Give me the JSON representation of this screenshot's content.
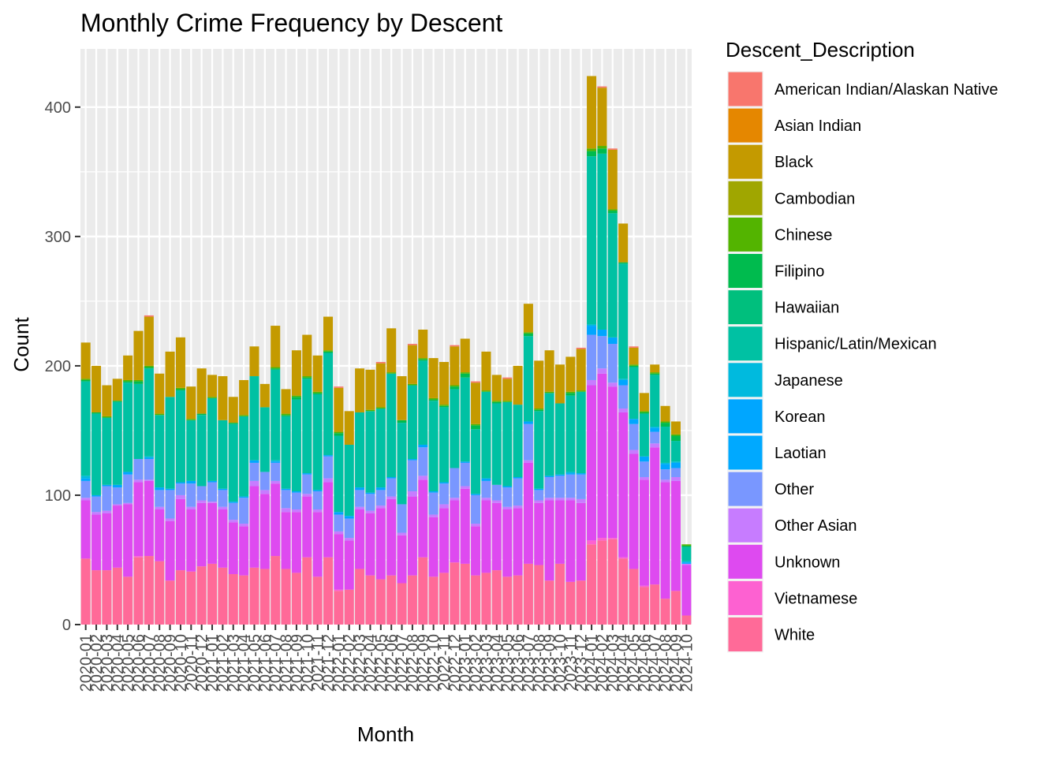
{
  "chart_data": {
    "type": "bar",
    "stacked": true,
    "title": "Monthly Crime Frequency by Descent",
    "xlabel": "Month",
    "ylabel": "Count",
    "ylim": [
      0,
      445
    ],
    "y_ticks": [
      0,
      100,
      200,
      300,
      400
    ],
    "grid": true,
    "legend_title": "Descent_Description",
    "legend_position": "right",
    "categories": [
      "2020-01",
      "2020-02",
      "2020-03",
      "2020-04",
      "2020-05",
      "2020-06",
      "2020-07",
      "2020-08",
      "2020-09",
      "2020-10",
      "2020-11",
      "2020-12",
      "2021-01",
      "2021-02",
      "2021-03",
      "2021-04",
      "2021-05",
      "2021-06",
      "2021-07",
      "2021-08",
      "2021-09",
      "2021-10",
      "2021-11",
      "2021-12",
      "2022-01",
      "2022-02",
      "2022-03",
      "2022-04",
      "2022-05",
      "2022-06",
      "2022-07",
      "2022-08",
      "2022-09",
      "2022-10",
      "2022-11",
      "2022-12",
      "2023-01",
      "2023-02",
      "2023-03",
      "2023-04",
      "2023-05",
      "2023-06",
      "2023-07",
      "2023-08",
      "2023-09",
      "2023-10",
      "2023-11",
      "2023-12",
      "2024-01",
      "2024-02",
      "2024-03",
      "2024-04",
      "2024-05",
      "2024-06",
      "2024-07",
      "2024-08",
      "2024-09",
      "2024-10"
    ],
    "tick_labels": [
      "2020-01",
      "2020-02",
      "2020-03",
      "2020-04",
      "2020-05",
      "2020-06",
      "2020-07",
      "2020-08",
      "2020-09",
      "2020-10",
      "2020-11",
      "2020-12",
      "2021-01",
      "2021-02",
      "2021-03",
      "2021-04",
      "2021-05",
      "2021-06",
      "2021-07",
      "2021-08",
      "2021-09",
      "2021-10",
      "2021-11",
      "2021-12",
      "2022-01",
      "2022-02",
      "2022-03",
      "2022-04",
      "2022-05",
      "2022-06",
      "2022-07",
      "2022-08",
      "2022-09",
      "2022-10",
      "2022-11",
      "2022-12",
      "2023-01",
      "2023-02",
      "2023-03",
      "2023-04",
      "2023-05",
      "2023-06",
      "2023-07",
      "2023-08",
      "2023-09",
      "2023-10",
      "2023-11",
      "2023-12",
      "2024-01",
      "2024-02",
      "2024-03",
      "2024-04",
      "2024-05",
      "2024-06",
      "2024-07",
      "2024-08",
      "2024-09",
      "2024-10"
    ],
    "series": [
      {
        "name": "American Indian/Alaskan Native",
        "color": "#F8766D",
        "values": [
          0,
          0,
          0,
          0,
          0,
          0,
          1,
          0,
          0,
          0,
          0,
          0,
          0,
          0,
          0,
          0,
          0,
          0,
          0,
          0,
          0,
          0,
          0,
          0,
          1,
          0,
          0,
          0,
          1,
          0,
          0,
          1,
          0,
          0,
          0,
          1,
          0,
          1,
          0,
          0,
          1,
          0,
          0,
          0,
          0,
          0,
          0,
          1,
          0,
          1,
          1,
          0,
          1,
          0,
          0,
          0,
          0,
          0
        ]
      },
      {
        "name": "Asian Indian",
        "color": "#E58700",
        "values": [
          0,
          0,
          0,
          0,
          0,
          0,
          0,
          0,
          0,
          0,
          0,
          0,
          0,
          0,
          0,
          0,
          0,
          0,
          0,
          0,
          0,
          0,
          0,
          0,
          0,
          0,
          0,
          0,
          0,
          0,
          0,
          0,
          0,
          0,
          0,
          0,
          0,
          0,
          0,
          0,
          0,
          0,
          0,
          0,
          0,
          0,
          0,
          0,
          0,
          0,
          0,
          0,
          0,
          0,
          0,
          0,
          0,
          0
        ]
      },
      {
        "name": "Black",
        "color": "#C49A00",
        "values": [
          28,
          36,
          24,
          17,
          19,
          38,
          38,
          31,
          35,
          39,
          25,
          35,
          17,
          34,
          20,
          27,
          23,
          18,
          32,
          19,
          35,
          32,
          28,
          26,
          34,
          26,
          34,
          31,
          34,
          34,
          34,
          30,
          22,
          31,
          33,
          30,
          26,
          32,
          30,
          20,
          17,
          30,
          22,
          37,
          32,
          30,
          27,
          32,
          56,
          45,
          46,
          30,
          13,
          14,
          6,
          12,
          10,
          0
        ]
      },
      {
        "name": "Cambodian",
        "color": "#A0A600",
        "values": [
          0,
          0,
          0,
          0,
          0,
          0,
          0,
          0,
          0,
          0,
          0,
          0,
          0,
          0,
          0,
          0,
          0,
          0,
          0,
          0,
          0,
          0,
          0,
          0,
          0,
          0,
          0,
          0,
          0,
          0,
          0,
          0,
          0,
          0,
          0,
          0,
          0,
          0,
          0,
          0,
          0,
          0,
          0,
          0,
          0,
          0,
          0,
          0,
          0,
          0,
          0,
          0,
          0,
          0,
          0,
          0,
          0,
          0
        ]
      },
      {
        "name": "Chinese",
        "color": "#53B400",
        "values": [
          1,
          0,
          1,
          0,
          1,
          1,
          1,
          1,
          0,
          1,
          1,
          0,
          1,
          0,
          0,
          1,
          0,
          0,
          1,
          1,
          1,
          1,
          1,
          1,
          1,
          0,
          0,
          1,
          1,
          1,
          0,
          1,
          1,
          1,
          1,
          1,
          1,
          1,
          1,
          1,
          1,
          0,
          1,
          1,
          1,
          0,
          1,
          1,
          2,
          2,
          1,
          0,
          1,
          1,
          1,
          1,
          1,
          1
        ]
      },
      {
        "name": "Filipino",
        "color": "#00BB4E",
        "values": [
          1,
          1,
          0,
          1,
          1,
          2,
          1,
          0,
          0,
          1,
          0,
          1,
          0,
          0,
          1,
          0,
          0,
          0,
          1,
          1,
          2,
          1,
          1,
          1,
          2,
          0,
          0,
          0,
          0,
          0,
          2,
          0,
          1,
          1,
          1,
          2,
          3,
          3,
          0,
          1,
          0,
          0,
          2,
          1,
          0,
          0,
          2,
          0,
          4,
          4,
          2,
          1,
          1,
          1,
          1,
          3,
          4,
          1
        ]
      },
      {
        "name": "Hawaiian",
        "color": "#00BF7D",
        "values": [
          0,
          0,
          0,
          0,
          0,
          0,
          0,
          0,
          0,
          0,
          0,
          0,
          0,
          0,
          0,
          0,
          0,
          0,
          0,
          0,
          0,
          0,
          0,
          0,
          0,
          0,
          0,
          0,
          0,
          0,
          0,
          0,
          0,
          0,
          0,
          0,
          0,
          0,
          0,
          0,
          0,
          0,
          0,
          0,
          0,
          0,
          0,
          0,
          0,
          0,
          0,
          0,
          0,
          0,
          0,
          0,
          0,
          0
        ]
      },
      {
        "name": "Hispanic/Latin/Mexican",
        "color": "#00C1A3",
        "values": [
          73,
          63,
          52,
          64,
          69,
          58,
          68,
          56,
          71,
          71,
          47,
          55,
          64,
          53,
          60,
          62,
          65,
          50,
          70,
          56,
          71,
          73,
          74,
          79,
          59,
          55,
          58,
          63,
          61,
          80,
          63,
          57,
          65,
          70,
          58,
          61,
          65,
          50,
          67,
          63,
          65,
          56,
          66,
          60,
          64,
          55,
          59,
          63,
          130,
          136,
          96,
          89,
          40,
          33,
          40,
          28,
          16,
          11
        ]
      },
      {
        "name": "Japanese",
        "color": "#00BADE",
        "values": [
          2,
          0,
          0,
          0,
          0,
          0,
          1,
          0,
          0,
          0,
          0,
          0,
          0,
          0,
          0,
          0,
          0,
          0,
          1,
          0,
          0,
          0,
          0,
          0,
          0,
          0,
          0,
          0,
          0,
          0,
          0,
          0,
          0,
          0,
          0,
          0,
          0,
          0,
          0,
          0,
          0,
          0,
          0,
          0,
          0,
          0,
          1,
          0,
          1,
          0,
          0,
          1,
          0,
          0,
          1,
          1,
          1,
          1
        ]
      },
      {
        "name": "Korean",
        "color": "#00A6FF",
        "values": [
          2,
          1,
          1,
          2,
          2,
          0,
          1,
          2,
          1,
          1,
          2,
          0,
          1,
          1,
          1,
          1,
          2,
          0,
          1,
          1,
          1,
          1,
          1,
          1,
          2,
          2,
          2,
          1,
          2,
          1,
          0,
          1,
          2,
          1,
          1,
          0,
          1,
          1,
          2,
          0,
          1,
          1,
          2,
          1,
          1,
          1,
          1,
          1,
          7,
          5,
          5,
          4,
          4,
          4,
          3,
          4,
          4,
          1
        ]
      },
      {
        "name": "Laotian",
        "color": "#00A9FF",
        "values": [
          0,
          0,
          0,
          0,
          0,
          0,
          0,
          0,
          0,
          0,
          0,
          0,
          0,
          0,
          0,
          0,
          0,
          0,
          0,
          0,
          0,
          0,
          0,
          0,
          0,
          0,
          0,
          0,
          0,
          0,
          0,
          0,
          0,
          0,
          0,
          0,
          0,
          0,
          0,
          0,
          0,
          0,
          0,
          0,
          0,
          0,
          0,
          0,
          0,
          0,
          0,
          0,
          0,
          0,
          0,
          0,
          0,
          0
        ]
      },
      {
        "name": "Other",
        "color": "#7997FF",
        "values": [
          13,
          12,
          19,
          13,
          22,
          16,
          16,
          13,
          22,
          9,
          18,
          11,
          15,
          13,
          13,
          20,
          14,
          14,
          14,
          14,
          13,
          15,
          14,
          17,
          13,
          15,
          13,
          13,
          12,
          14,
          22,
          24,
          22,
          17,
          16,
          23,
          18,
          22,
          13,
          12,
          15,
          21,
          28,
          8,
          16,
          17,
          18,
          19,
          35,
          25,
          30,
          18,
          20,
          12,
          9,
          8,
          7,
          0
        ]
      },
      {
        "name": "Other Asian",
        "color": "#C77CFF",
        "values": [
          2,
          2,
          2,
          1,
          1,
          2,
          1,
          2,
          2,
          3,
          2,
          2,
          1,
          2,
          2,
          2,
          4,
          3,
          2,
          3,
          2,
          2,
          2,
          3,
          2,
          2,
          2,
          2,
          2,
          2,
          2,
          4,
          3,
          2,
          3,
          2,
          2,
          2,
          2,
          2,
          2,
          2,
          2,
          2,
          2,
          2,
          2,
          3,
          4,
          4,
          3,
          3,
          3,
          2,
          3,
          2,
          3,
          1
        ]
      },
      {
        "name": "Unknown",
        "color": "#DE4AF0",
        "values": [
          45,
          43,
          44,
          48,
          56,
          57,
          58,
          40,
          46,
          55,
          48,
          49,
          47,
          45,
          40,
          38,
          63,
          58,
          56,
          44,
          47,
          47,
          50,
          58,
          43,
          38,
          46,
          48,
          55,
          59,
          37,
          61,
          60,
          46,
          50,
          48,
          58,
          38,
          56,
          52,
          52,
          52,
          78,
          48,
          62,
          49,
          63,
          60,
          120,
          127,
          117,
          112,
          89,
          82,
          106,
          90,
          85,
          39
        ]
      },
      {
        "name": "Vietnamese",
        "color": "#FD61D1",
        "values": [
          0,
          0,
          0,
          0,
          0,
          1,
          0,
          0,
          0,
          0,
          0,
          0,
          0,
          0,
          0,
          0,
          0,
          0,
          0,
          0,
          0,
          0,
          0,
          0,
          1,
          0,
          0,
          0,
          0,
          0,
          0,
          0,
          0,
          0,
          0,
          0,
          0,
          0,
          0,
          0,
          0,
          0,
          0,
          0,
          0,
          0,
          0,
          0,
          3,
          2,
          1,
          1,
          0,
          1,
          0,
          0,
          0,
          0
        ]
      },
      {
        "name": "White",
        "color": "#FF6A98",
        "values": [
          51,
          42,
          42,
          44,
          37,
          52,
          53,
          49,
          34,
          42,
          41,
          45,
          47,
          44,
          39,
          38,
          44,
          43,
          53,
          43,
          40,
          52,
          37,
          52,
          26,
          27,
          43,
          38,
          35,
          38,
          32,
          38,
          52,
          37,
          40,
          48,
          47,
          38,
          40,
          42,
          37,
          38,
          47,
          46,
          34,
          47,
          33,
          34,
          62,
          65,
          66,
          51,
          43,
          29,
          31,
          20,
          26,
          7
        ]
      }
    ]
  }
}
